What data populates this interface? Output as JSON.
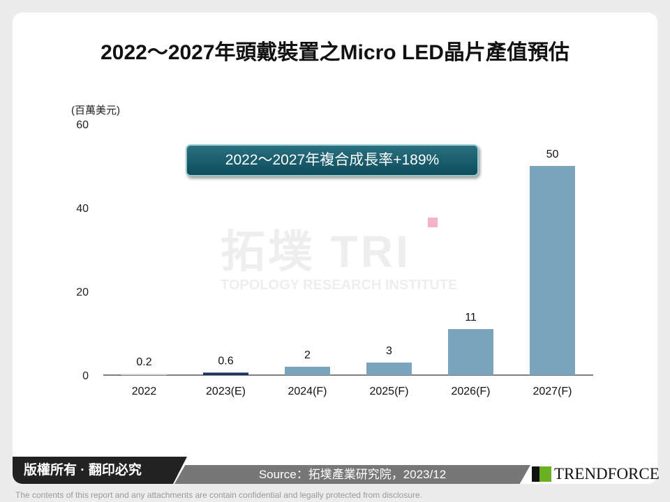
{
  "title": "2022～2027年頭戴裝置之Micro LED晶片產值預估",
  "unit": "(百萬美元)",
  "cagr": "2022～2027年複合成長率+189%",
  "watermark": {
    "big": "拓墣 TRI",
    "small": "TOPOLOGY RESEARCH INSTITUTE"
  },
  "footer": {
    "copyright": "版權所有 · 翻印必究",
    "source": "Source：拓墣產業研究院，2023/12",
    "logo": "TRENDFORCE",
    "disclaimer": "The contents of this report and any attachments are contain confidential and legally protected from disclosure."
  },
  "chart_data": {
    "type": "bar",
    "title": "2022～2027年頭戴裝置之Micro LED晶片產值預估",
    "ylabel": "(百萬美元)",
    "categories": [
      "2022",
      "2023(E)",
      "2024(F)",
      "2025(F)",
      "2026(F)",
      "2027(F)"
    ],
    "values": [
      0.2,
      0.6,
      2,
      3,
      11,
      50
    ],
    "labels": [
      "0.2",
      "0.6",
      "2",
      "3",
      "11",
      "50"
    ],
    "ylim": [
      0,
      60
    ],
    "yticks": [
      0,
      20,
      40,
      60
    ],
    "grid": false,
    "colors": [
      "#d9d9d9",
      "#1a3660",
      "#7aa3be",
      "#7aa3be",
      "#7aa3be",
      "#7aa3be"
    ]
  }
}
